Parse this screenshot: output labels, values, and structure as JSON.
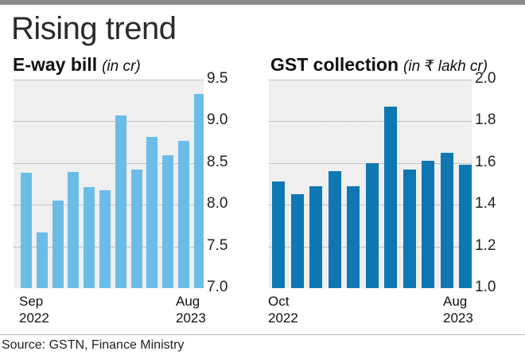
{
  "title": "Rising trend",
  "source": "Source: GSTN, Finance Ministry",
  "colors": {
    "eway_bar": "#6bbde8",
    "gst_bar": "#0f77b2",
    "plot_bg": "#efefef"
  },
  "left": {
    "title": "E-way bill",
    "unit": "(in cr)",
    "x_start": [
      "Sep",
      "2022"
    ],
    "x_end": [
      "Aug",
      "2023"
    ],
    "yticks": [
      "9.5",
      "9.0",
      "8.5",
      "8.0",
      "7.5",
      "7.0"
    ]
  },
  "right": {
    "title": "GST collection",
    "unit": "(in ₹ lakh cr)",
    "x_start": [
      "Oct",
      "2022"
    ],
    "x_end": [
      "Aug",
      "2023"
    ],
    "yticks": [
      "2.0",
      "1.8",
      "1.6",
      "1.4",
      "1.2",
      "1.0"
    ]
  },
  "chart_data": [
    {
      "type": "bar",
      "title": "E-way bill",
      "ylabel": "(in cr)",
      "ylim": [
        7.0,
        9.5
      ],
      "values": [
        8.38,
        7.67,
        8.05,
        8.39,
        8.21,
        8.17,
        9.07,
        8.42,
        8.81,
        8.59,
        8.77,
        9.33
      ]
    },
    {
      "type": "bar",
      "title": "GST collection",
      "ylabel": "(in ₹ lakh cr)",
      "ylim": [
        1.0,
        2.0
      ],
      "values": [
        1.51,
        1.45,
        1.49,
        1.56,
        1.49,
        1.6,
        1.87,
        1.57,
        1.61,
        1.65,
        1.59
      ]
    }
  ]
}
